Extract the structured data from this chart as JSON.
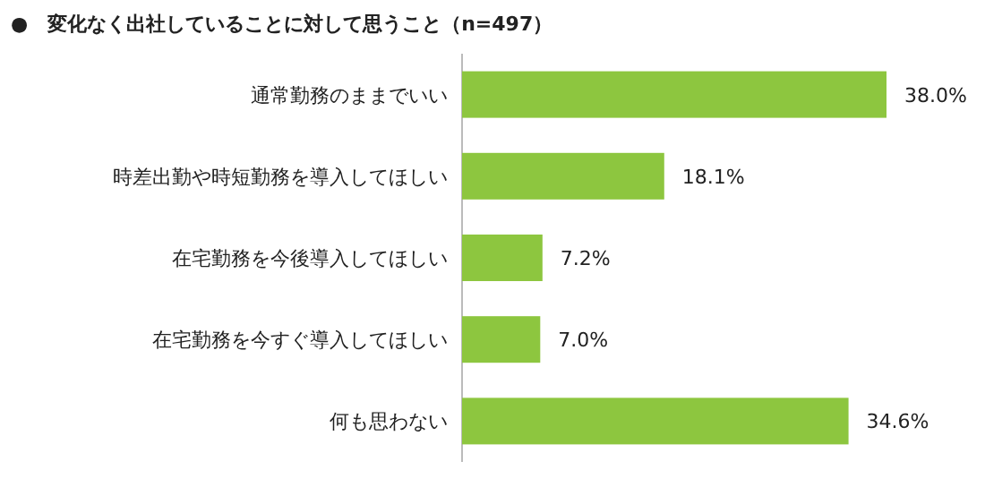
{
  "chart_data": {
    "type": "bar",
    "orientation": "horizontal",
    "title": "●　変化なく出社していることに対して思うこと（n=497）",
    "categories": [
      "通常勤務のままでいい",
      "時差出勤や時短勤務を導入してほしい",
      "在宅勤務を今後導入してほしい",
      "在宅勤務を今すぐ導入してほしい",
      "何も思わない"
    ],
    "values": [
      38.0,
      18.1,
      7.2,
      7.0,
      34.6
    ],
    "value_labels": [
      "38.0%",
      "18.1%",
      "7.2%",
      "7.0%",
      "34.6%"
    ],
    "color": "#8dc63f"
  }
}
